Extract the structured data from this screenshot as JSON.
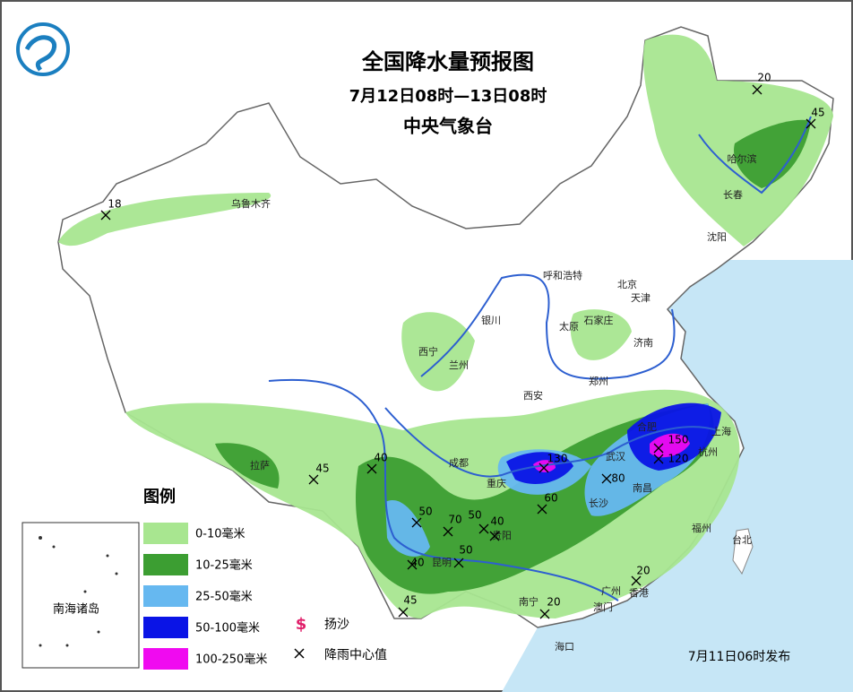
{
  "header": {
    "title": "全国降水量预报图",
    "period": "7月12日08时—13日08时",
    "issuer": "中央气象台"
  },
  "legend": {
    "title": "图例",
    "items": [
      {
        "label": "0-10毫米",
        "color": "#a8e690"
      },
      {
        "label": "10-25毫米",
        "color": "#3c9e32"
      },
      {
        "label": "25-50毫米",
        "color": "#66b8f0"
      },
      {
        "label": "50-100毫米",
        "color": "#0a14e6"
      },
      {
        "label": "100-250毫米",
        "color": "#f00af0"
      }
    ],
    "symbols": [
      {
        "label": "扬沙"
      },
      {
        "label": "降雨中心值"
      }
    ]
  },
  "cities": [
    "乌鲁木齐",
    "哈尔滨",
    "长春",
    "沈阳",
    "呼和浩特",
    "北京",
    "天津",
    "银川",
    "太原",
    "石家庄",
    "济南",
    "西宁",
    "兰州",
    "郑州",
    "西安",
    "合肥",
    "上海",
    "杭州",
    "拉萨",
    "成都",
    "武汉",
    "重庆",
    "长沙",
    "南昌",
    "贵阳",
    "昆明",
    "福州",
    "台北",
    "广州",
    "香港",
    "澳门",
    "南宁",
    "海口"
  ],
  "rain_centers": [
    "18",
    "20",
    "45",
    "45",
    "40",
    "50",
    "70",
    "50",
    "40",
    "130",
    "60",
    "80",
    "150",
    "120",
    "40",
    "50",
    "45",
    "20",
    "20"
  ],
  "inset": "南海诸岛",
  "issued": "7月11日06时发布"
}
